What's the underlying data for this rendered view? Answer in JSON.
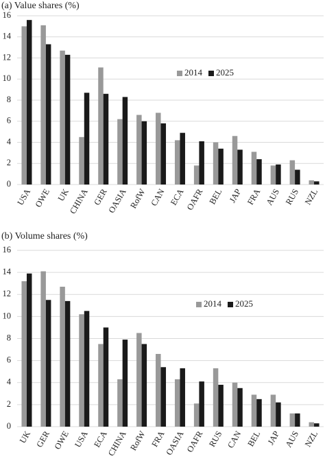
{
  "chart_data": [
    {
      "type": "bar",
      "title": "(a)  Value shares (%)",
      "categories": [
        "USA",
        "OWE",
        "UK",
        "CHINA",
        "GER",
        "OASIA",
        "RofW",
        "CAN",
        "ECA",
        "OAFR",
        "BEL",
        "JAP",
        "FRA",
        "AUS",
        "RUS",
        "NZL"
      ],
      "series": [
        {
          "name": "2014",
          "color": "#999999",
          "values": [
            15.0,
            15.1,
            12.7,
            4.5,
            11.1,
            6.2,
            6.6,
            6.8,
            4.2,
            1.8,
            4.0,
            4.6,
            3.1,
            1.8,
            2.3,
            0.4
          ]
        },
        {
          "name": "2025",
          "color": "#1a1a1a",
          "values": [
            15.6,
            13.3,
            12.3,
            8.7,
            8.6,
            8.3,
            6.0,
            5.8,
            4.9,
            4.1,
            3.4,
            3.3,
            2.4,
            1.9,
            1.4,
            0.3
          ]
        }
      ],
      "ylim": [
        0,
        16
      ],
      "yticks": [
        0,
        2,
        4,
        6,
        8,
        10,
        12,
        14,
        16
      ],
      "grid": true
    },
    {
      "type": "bar",
      "title": "(b)  Volume shares (%)",
      "categories": [
        "UK",
        "GER",
        "OWE",
        "USA",
        "ECA",
        "CHINA",
        "RofW",
        "FRA",
        "OASIA",
        "OAFR",
        "RUS",
        "CAN",
        "BEL",
        "JAP",
        "AUS",
        "NZL"
      ],
      "series": [
        {
          "name": "2014",
          "color": "#999999",
          "values": [
            13.2,
            14.1,
            12.7,
            10.2,
            7.5,
            4.3,
            8.5,
            6.6,
            4.3,
            2.1,
            5.3,
            4.0,
            2.9,
            2.9,
            1.2,
            0.4
          ]
        },
        {
          "name": "2025",
          "color": "#1a1a1a",
          "values": [
            13.9,
            11.5,
            11.4,
            10.5,
            9.0,
            7.9,
            7.5,
            5.4,
            5.3,
            4.1,
            3.8,
            3.5,
            2.5,
            2.2,
            1.2,
            0.3
          ]
        }
      ],
      "ylim": [
        0,
        16
      ],
      "yticks": [
        0,
        2,
        4,
        6,
        8,
        10,
        12,
        14,
        16
      ],
      "grid": true
    }
  ]
}
